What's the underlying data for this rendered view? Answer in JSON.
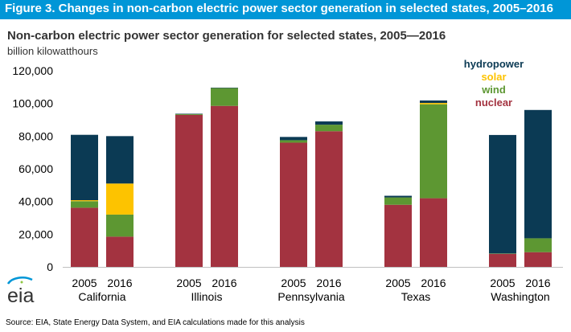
{
  "header": {
    "title": "Figure 3. Changes in non-carbon electric power sector generation in selected states, 2005–2016"
  },
  "logo": {
    "text": "eia"
  },
  "source": "Source:  EIA, State Energy Data System, and EIA calculations made for this analysis",
  "colors": {
    "header_bg": "#0096d7",
    "hydropower": "#0b3a54",
    "solar": "#fdc300",
    "wind": "#5d9732",
    "nuclear": "#a33340"
  },
  "chart_data": {
    "type": "bar",
    "stacked": true,
    "title": "Non-carbon  electric power sector  generation for selected states,  2005—2016",
    "ylabel": "billion  kilowatthours",
    "ylim": [
      0,
      120000
    ],
    "yticks": [
      "0",
      "20,000",
      "40,000",
      "60,000",
      "80,000",
      "100,000",
      "120,000"
    ],
    "grid": false,
    "legend_placement": "top-right",
    "categories": [
      "2005",
      "2016",
      "2005",
      "2016",
      "2005",
      "2016",
      "2005",
      "2016",
      "2005",
      "2016"
    ],
    "groups": [
      "California",
      "Illinois",
      "Pennsylvania",
      "Texas",
      "Washington"
    ],
    "series": [
      {
        "name": "nuclear",
        "color": "#a33340",
        "values": [
          36200,
          18500,
          93000,
          98500,
          76000,
          83000,
          38000,
          42000,
          8000,
          9000
        ]
      },
      {
        "name": "wind",
        "color": "#5d9732",
        "values": [
          4000,
          13500,
          600,
          11000,
          1500,
          4000,
          4500,
          57500,
          200,
          8500
        ]
      },
      {
        "name": "solar",
        "color": "#fdc300",
        "values": [
          600,
          19000,
          0,
          0,
          0,
          0,
          0,
          800,
          0,
          0
        ]
      },
      {
        "name": "hydropower",
        "color": "#0b3a54",
        "values": [
          40000,
          29000,
          100,
          100,
          2000,
          2000,
          1000,
          1500,
          72500,
          78500
        ]
      }
    ],
    "legend_order": [
      "hydropower",
      "solar",
      "wind",
      "nuclear"
    ]
  }
}
